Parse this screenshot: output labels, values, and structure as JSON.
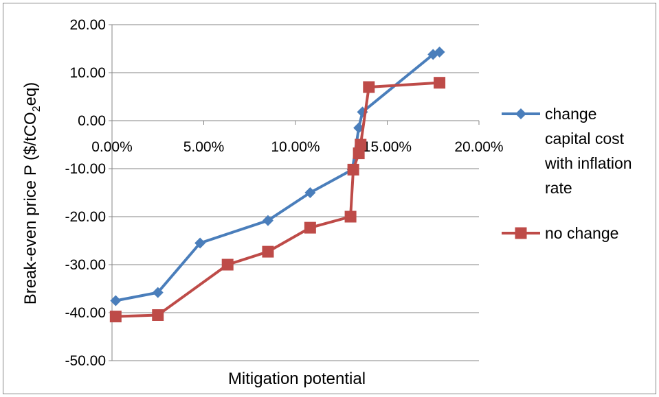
{
  "chart_data": {
    "type": "line",
    "xlabel": "Mitigation potential",
    "ylabel": "Break-even price P ($/tCO2eq)",
    "ylabel_parts": {
      "main": "Break-even price P ($/tCO",
      "sub": "2",
      "end": "eq)"
    },
    "xlim": [
      0,
      0.2
    ],
    "ylim": [
      -50,
      20
    ],
    "x_ticks": [
      "0.00%",
      "5.00%",
      "10.00%",
      "15.00%",
      "20.00%"
    ],
    "y_ticks": [
      "20.00",
      "10.00",
      "0.00",
      "-10.00",
      "-20.00",
      "-30.00",
      "-40.00",
      "-50.00"
    ],
    "grid": "horizontal",
    "legend_position": "right",
    "series": [
      {
        "name": "change capital cost with inflation rate",
        "name_lines": [
          "change",
          "capital cost",
          "with inflation",
          "rate"
        ],
        "color": "#4A7EBB",
        "marker": "diamond",
        "x": [
          0.002,
          0.025,
          0.048,
          0.085,
          0.108,
          0.131,
          0.1345,
          0.1365,
          0.175,
          0.1785
        ],
        "y": [
          -37.5,
          -35.8,
          -25.5,
          -20.8,
          -15.0,
          -10.2,
          -1.5,
          1.8,
          13.8,
          14.3
        ]
      },
      {
        "name": "no change",
        "name_lines": [
          "no change"
        ],
        "color": "#BE4B48",
        "marker": "square",
        "x": [
          0.002,
          0.025,
          0.063,
          0.085,
          0.108,
          0.13,
          0.1315,
          0.1345,
          0.1355,
          0.14,
          0.1785
        ],
        "y": [
          -40.8,
          -40.5,
          -30.0,
          -27.3,
          -22.3,
          -20.0,
          -10.2,
          -6.8,
          -5.0,
          7.0,
          7.9
        ]
      }
    ]
  }
}
